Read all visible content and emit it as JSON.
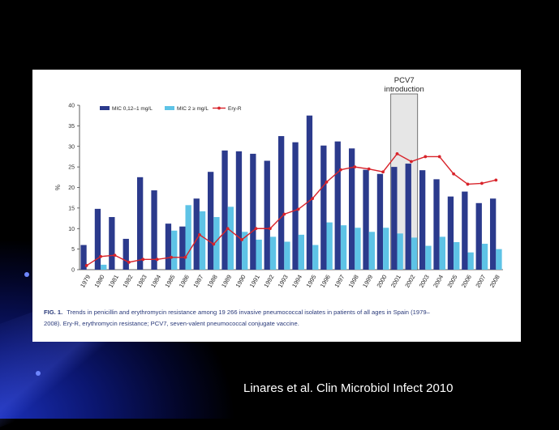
{
  "slide": {
    "citation": "Linares et al. Clin Microbiol Infect 2010"
  },
  "colors": {
    "bar_mic_low": "#2b3a8c",
    "bar_mic_high": "#5ec3e6",
    "line_ery": "#d8232a",
    "pcv7_box": "#e6e6e6"
  },
  "chart_data": {
    "type": "bar",
    "categories": [
      "1979",
      "1980",
      "1981",
      "1982",
      "1983",
      "1984",
      "1985",
      "1986",
      "1987",
      "1988",
      "1989",
      "1990",
      "1991",
      "1992",
      "1993",
      "1994",
      "1995",
      "1996",
      "1997",
      "1998",
      "1999",
      "2000",
      "2001",
      "2002",
      "2003",
      "2004",
      "2005",
      "2006",
      "2007",
      "2008"
    ],
    "series": [
      {
        "name": "MIC 0,12–1 mg/L",
        "kind": "bar",
        "values": [
          6,
          14.8,
          12.8,
          7.5,
          22.5,
          19.3,
          11.2,
          10.5,
          17.3,
          23.8,
          29,
          28.8,
          28.2,
          26.5,
          32.5,
          31,
          37.5,
          30.2,
          31.2,
          29.5,
          24.3,
          23.3,
          25,
          25.8,
          24.2,
          22,
          17.8,
          19,
          16.2,
          17.3
        ]
      },
      {
        "name": "MIC 2 ≥ mg/L",
        "kind": "bar",
        "values": [
          0,
          1.2,
          0,
          0,
          0,
          0,
          9.5,
          15.7,
          14.2,
          12.8,
          15.3,
          9.2,
          7.3,
          8,
          6.8,
          8.5,
          6,
          11.5,
          10.8,
          10.2,
          9.2,
          10.2,
          8.8,
          7.8,
          5.8,
          8,
          6.7,
          4.2,
          6.3,
          5
        ]
      },
      {
        "name": "Ery-R",
        "kind": "line",
        "values": [
          1,
          3.2,
          3.5,
          1.8,
          2.5,
          2.5,
          3,
          3,
          8.5,
          6.2,
          10,
          7.3,
          10,
          10,
          13.5,
          14.7,
          17.3,
          21.3,
          24.3,
          25,
          24.5,
          23.8,
          28.2,
          26.3,
          27.5,
          27.5,
          23.3,
          20.8,
          21,
          21.8
        ]
      }
    ],
    "xlabel": "",
    "ylabel": "%",
    "ylim": [
      0,
      40
    ],
    "yticks": [
      0,
      5,
      10,
      15,
      20,
      25,
      30,
      35,
      40
    ],
    "legend": "top-left",
    "annotation": {
      "label_line1": "PCV7",
      "label_line2": "introduction",
      "span": [
        "2001",
        "2002"
      ]
    },
    "caption_bold": "FIG. 1.",
    "caption_line1": "Trends in penicillin and erythromycin resistance among 19 266 invasive pneumococcal isolates in patients of all ages in Spain (1979–",
    "caption_line2": "2008). Ery-R, erythromycin resistance; PCV7, seven-valent pneumococcal conjugate vaccine."
  }
}
